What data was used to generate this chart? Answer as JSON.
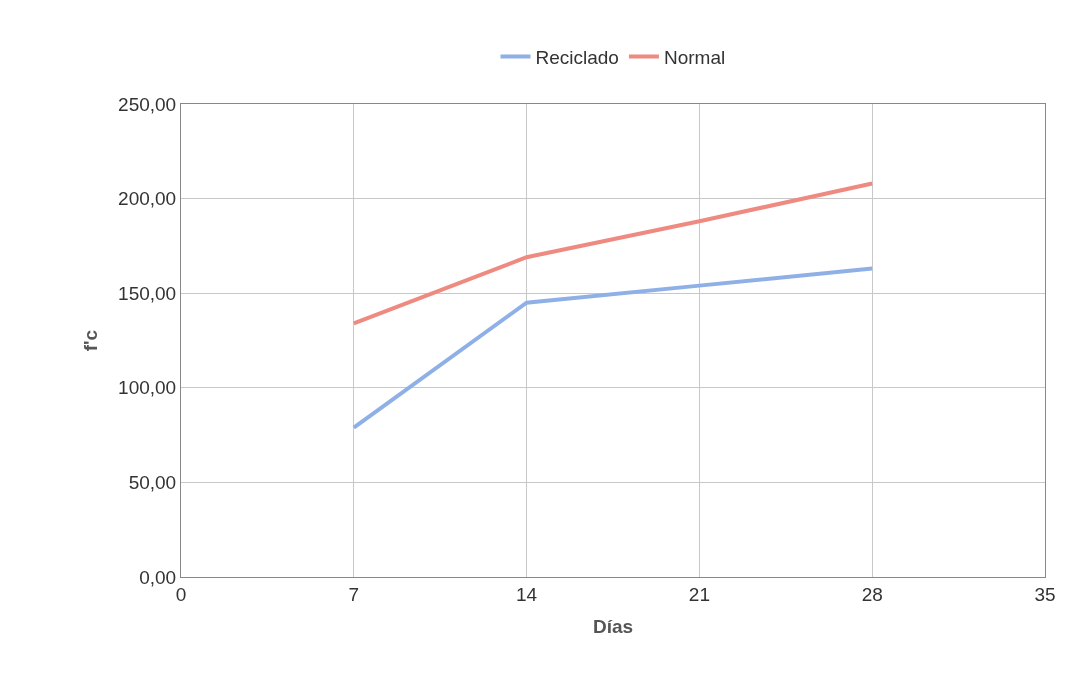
{
  "chart_data": {
    "type": "line",
    "xlabel": "Días",
    "ylabel": "f'c",
    "x": [
      7,
      14,
      21,
      28
    ],
    "series": [
      {
        "name": "Reciclado",
        "color": "#8fb0e6",
        "values": [
          79,
          145,
          154,
          163
        ]
      },
      {
        "name": "Normal",
        "color": "#ee8a80",
        "values": [
          134,
          169,
          188,
          208
        ]
      }
    ],
    "xlim": [
      0,
      35
    ],
    "xticks": [
      0,
      7,
      14,
      21,
      28,
      35
    ],
    "ylim": [
      0,
      250
    ],
    "yticks": [
      {
        "value": 0,
        "label": "0,00"
      },
      {
        "value": 50,
        "label": "50,00"
      },
      {
        "value": 100,
        "label": "100,00"
      },
      {
        "value": 150,
        "label": "150,00"
      },
      {
        "value": 200,
        "label": "200,00"
      },
      {
        "value": 250,
        "label": "250,00"
      }
    ],
    "grid": true,
    "legend": "top",
    "marker": "none",
    "line_style": "solid"
  }
}
